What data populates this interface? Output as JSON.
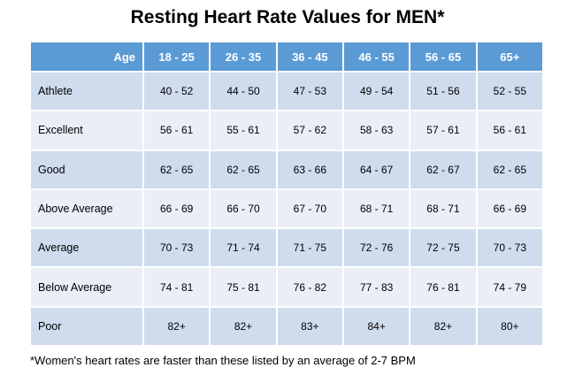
{
  "title": "Resting Heart Rate Values for MEN*",
  "footnote": "*Women's heart rates are faster than these listed by an average of 2-7 BPM",
  "colors": {
    "header_bg": "#5b9bd5",
    "row_dark": "#cfdcee",
    "row_light": "#e9eef7"
  },
  "chart_data": {
    "type": "table",
    "corner_header": "Age",
    "columns": [
      "18 - 25",
      "26 - 35",
      "36 - 45",
      "46 - 55",
      "56 - 65",
      "65+"
    ],
    "rows": [
      {
        "label": "Athlete",
        "values": [
          "40 - 52",
          "44 - 50",
          "47 - 53",
          "49 - 54",
          "51 - 56",
          "52 - 55"
        ]
      },
      {
        "label": "Excellent",
        "values": [
          "56 - 61",
          "55 - 61",
          "57 - 62",
          "58 - 63",
          "57 - 61",
          "56 - 61"
        ]
      },
      {
        "label": "Good",
        "values": [
          "62 - 65",
          "62 - 65",
          "63 - 66",
          "64 - 67",
          "62 - 67",
          "62 - 65"
        ]
      },
      {
        "label": "Above Average",
        "values": [
          "66 - 69",
          "66 - 70",
          "67 - 70",
          "68 - 71",
          "68 - 71",
          "66 - 69"
        ]
      },
      {
        "label": "Average",
        "values": [
          "70 - 73",
          "71 - 74",
          "71 - 75",
          "72 - 76",
          "72 - 75",
          "70 - 73"
        ]
      },
      {
        "label": "Below Average",
        "values": [
          "74 - 81",
          "75 - 81",
          "76 - 82",
          "77 - 83",
          "76 - 81",
          "74 - 79"
        ]
      },
      {
        "label": "Poor",
        "values": [
          "82+",
          "82+",
          "83+",
          "84+",
          "82+",
          "80+"
        ]
      }
    ]
  }
}
